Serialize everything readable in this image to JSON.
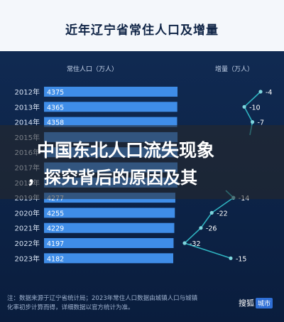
{
  "chart_data": {
    "type": "bar",
    "title": "近年辽宁省常住人口及增量",
    "bar_header": "常住人口（万人）",
    "line_header": "增量（万人）",
    "categories": [
      "2012年",
      "2013年",
      "2014年",
      "2015年",
      "2016年",
      "2017年",
      "2018年",
      "2019年",
      "2020年",
      "2021年",
      "2022年",
      "2023年"
    ],
    "series": [
      {
        "name": "常住人口（万人）",
        "values": [
          4375,
          4365,
          4358,
          null,
          null,
          null,
          null,
          4277,
          4255,
          4229,
          4197,
          4182
        ]
      },
      {
        "name": "增量（万人）",
        "values": [
          -4,
          -10,
          -7,
          null,
          null,
          null,
          null,
          -14,
          -22,
          -26,
          -32,
          -15
        ]
      }
    ],
    "bar_labels": [
      "4375",
      "4365",
      "4358",
      "",
      "",
      "",
      "",
      "4277",
      "4255",
      "4229",
      "4197",
      "4182"
    ],
    "line_labels": [
      "-4",
      "-10",
      "-7",
      "",
      "",
      "",
      "",
      "-14",
      "-22",
      "-26",
      "-32",
      "-15"
    ],
    "colors": {
      "bar": "#3f8de8",
      "line": "#2fb3c0",
      "marker": "#7fd6de"
    }
  },
  "overlay_title_line1": "中国东北人口流失现象",
  "overlay_title_line2": "，探究背后的原因及其",
  "footnote": "注：数据来源于辽宁省统计局；2023年常住人口数据由城镇人口与城镇化率初步计算而得，详细数据以官方统计为准。",
  "watermark": {
    "brand": "搜狐",
    "tag": "城市"
  }
}
